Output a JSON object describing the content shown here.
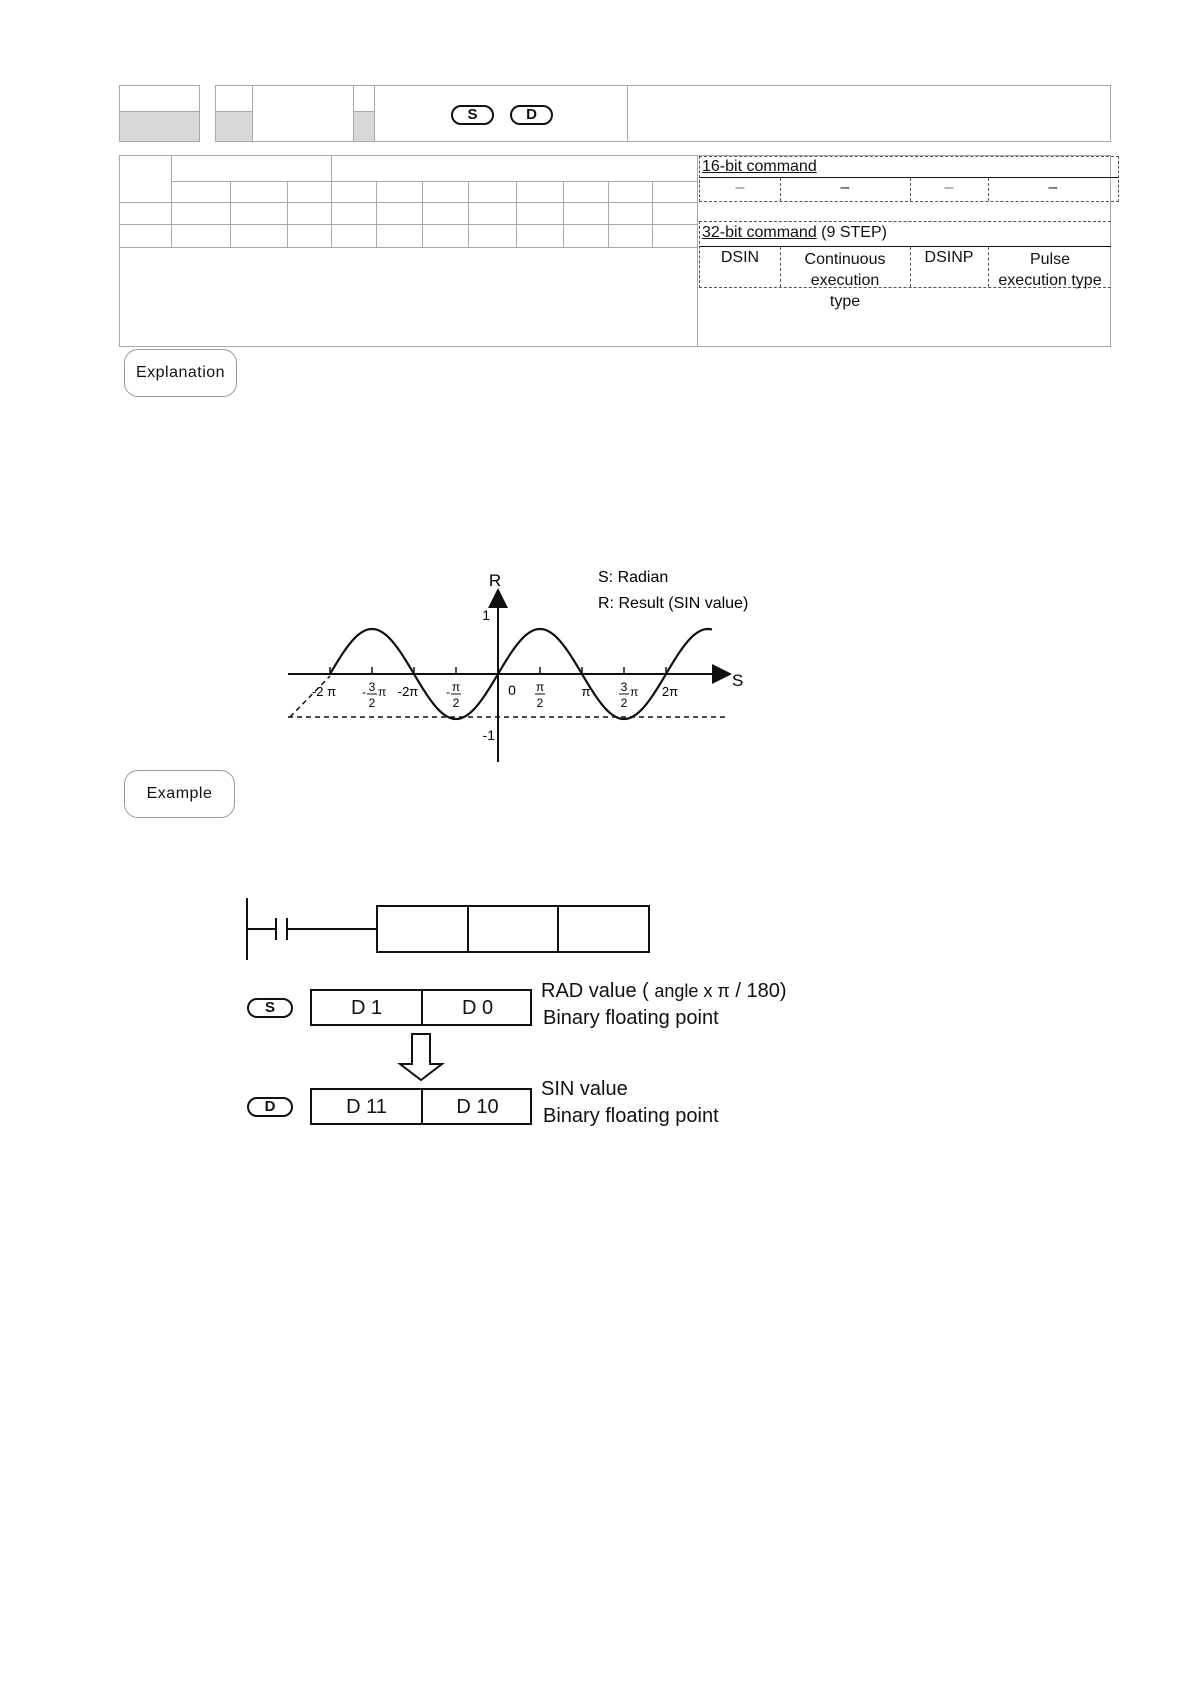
{
  "header": {
    "operand_s": "S",
    "operand_d": "D"
  },
  "command_table": {
    "bit16": {
      "title": "16-bit command",
      "cells": [
        "–",
        "–",
        "–",
        "–"
      ]
    },
    "bit32": {
      "title": "32-bit command",
      "steps": "(9 STEP)",
      "continuous_mnemonic": "DSIN",
      "continuous_label": "Continuous execution type",
      "pulse_mnemonic": "DSINP",
      "pulse_label": "Pulse execution type"
    }
  },
  "explanation": {
    "button_label": "Explanation",
    "graph": {
      "y_axis_label": "R",
      "x_axis_label": "S",
      "legend_s": "S: Radian",
      "legend_r": "R: Result (SIN value)",
      "y_tick_pos": "1",
      "y_tick_neg": "-1",
      "origin_label": "0",
      "x_ticks": [
        {
          "pre": "-2 π",
          "num": "",
          "den": "",
          "post": ""
        },
        {
          "pre": "-",
          "num": "3",
          "den": "2",
          "post": "π"
        },
        {
          "pre": "-2π",
          "num": "",
          "den": "",
          "post": ""
        },
        {
          "pre": "-",
          "num": "π",
          "den": "2",
          "post": ""
        },
        {
          "pre": "",
          "num": "π",
          "den": "2",
          "post": ""
        },
        {
          "pre": "π",
          "num": "",
          "den": "",
          "post": ""
        },
        {
          "pre": "",
          "num": "3",
          "den": "2",
          "post": "π"
        },
        {
          "pre": "2π",
          "num": "",
          "den": "",
          "post": ""
        }
      ]
    }
  },
  "example": {
    "button_label": "Example",
    "s_operand": "S",
    "d_operand": "D",
    "s_regs": [
      "D 1",
      "D 0"
    ],
    "d_regs": [
      "D 11",
      "D 10"
    ],
    "s_desc_line1_main": "RAD value (",
    "s_desc_line1_small": "angle  x π",
    "s_desc_line1_end": "/ 180)",
    "s_desc_line2": "Binary floating point",
    "d_desc_line1": "SIN value",
    "d_desc_line2": "Binary floating point"
  }
}
